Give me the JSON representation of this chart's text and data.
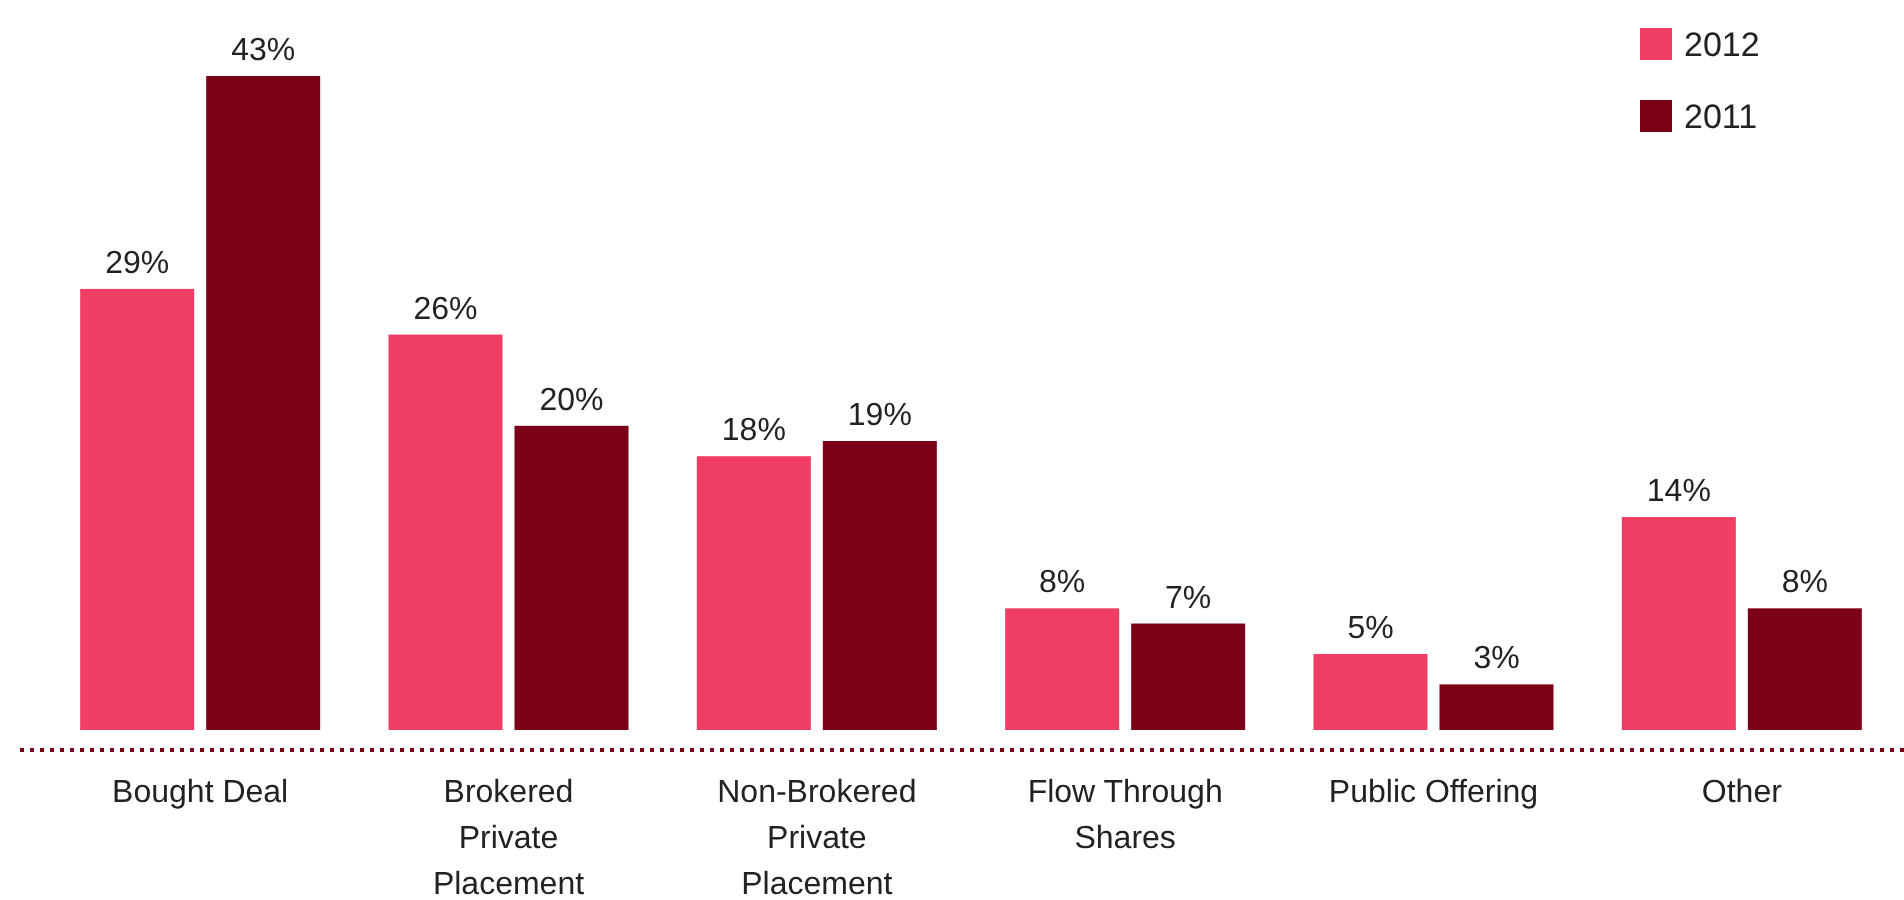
{
  "chart_data": {
    "type": "bar",
    "categories": [
      "Bought Deal",
      "Brokered Private Placement",
      "Non-Brokered Private Placement",
      "Flow Through Shares",
      "Public Offering",
      "Other"
    ],
    "series": [
      {
        "name": "2012",
        "color": "#ef3d63",
        "values": [
          29,
          26,
          18,
          8,
          5,
          14
        ],
        "value_labels": [
          "29%",
          "26%",
          "18%",
          "8%",
          "5%",
          "14%"
        ]
      },
      {
        "name": "2011",
        "color": "#7d0019",
        "values": [
          43,
          20,
          19,
          7,
          3,
          8
        ],
        "value_labels": [
          "43%",
          "20%",
          "19%",
          "7%",
          "3%",
          "8%"
        ]
      }
    ],
    "legend": "top right"
  }
}
